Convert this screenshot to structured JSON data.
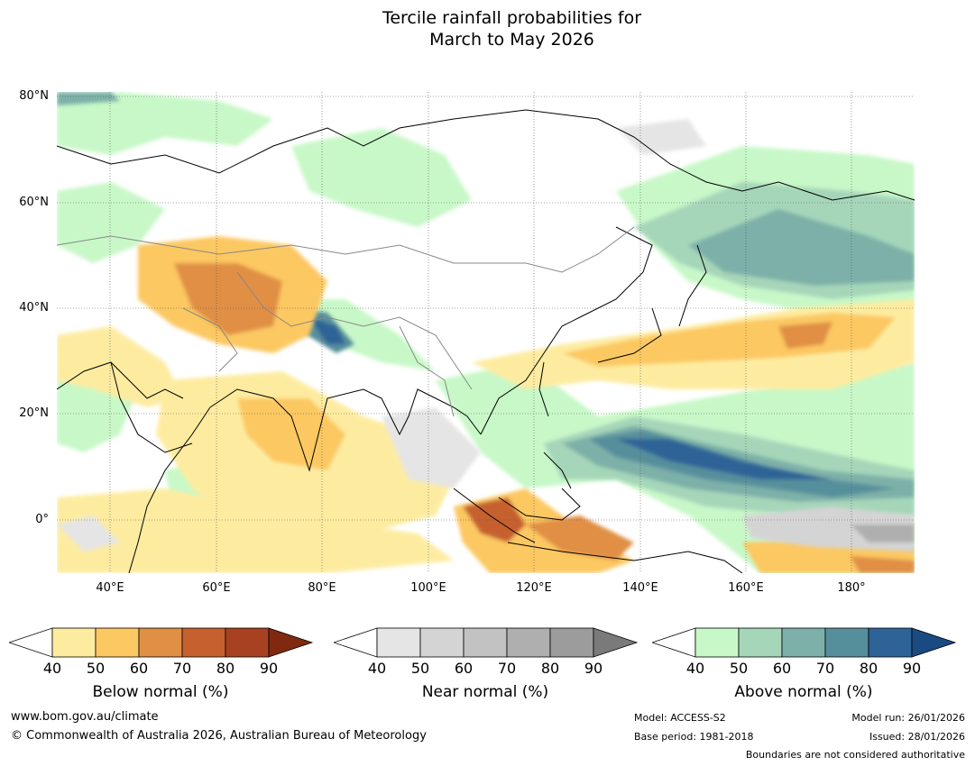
{
  "title_line1": "Tercile rainfall probabilities for",
  "title_line2": "March to May 2026",
  "lat_labels": [
    "80°N",
    "60°N",
    "40°N",
    "20°N",
    "0°"
  ],
  "lon_labels": [
    "40°E",
    "60°E",
    "80°E",
    "100°E",
    "120°E",
    "140°E",
    "160°E",
    "180°"
  ],
  "colorbars": [
    {
      "label": "Below normal (%)",
      "ticks": [
        "40",
        "50",
        "60",
        "70",
        "80",
        "90"
      ],
      "colors": [
        "#ffffff",
        "#fdeca0",
        "#fcc862",
        "#e08f45",
        "#c6612f",
        "#a84122",
        "#7f2a10"
      ]
    },
    {
      "label": "Near normal (%)",
      "ticks": [
        "40",
        "50",
        "60",
        "70",
        "80",
        "90"
      ],
      "colors": [
        "#ffffff",
        "#e5e5e5",
        "#d4d4d4",
        "#c2c2c2",
        "#afafaf",
        "#9c9c9c",
        "#7a7a7a"
      ]
    },
    {
      "label": "Above normal (%)",
      "ticks": [
        "40",
        "50",
        "60",
        "70",
        "80",
        "90"
      ],
      "colors": [
        "#ffffff",
        "#c8f8c8",
        "#a6d6b9",
        "#7db0a8",
        "#568f9c",
        "#2e6398",
        "#1a4a82"
      ]
    }
  ],
  "footer": {
    "url": "www.bom.gov.au/climate",
    "copyright": "© Commonwealth of Australia 2026, Australian Bureau of Meteorology",
    "model": "Model: ACCESS-S2",
    "base": "Base period: 1981-2018",
    "run": "Model run: 26/01/2026",
    "issued": "Issued: 28/01/2026",
    "note": "Boundaries are not considered authoritative"
  }
}
